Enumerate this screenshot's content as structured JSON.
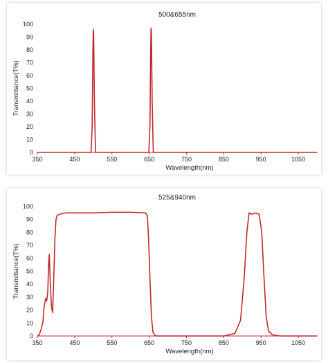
{
  "colors": {
    "curve": "#c0282d",
    "axis": "#c0282d",
    "grid": "#e6e6e6"
  },
  "chart_data": [
    {
      "type": "line",
      "title": "500&655nm",
      "xlabel": "Wavelength(nm)",
      "ylabel": "Transmittance(T%)",
      "xlim": [
        350,
        1100
      ],
      "ylim": [
        0,
        100
      ],
      "xticks": [
        "350",
        "450",
        "550",
        "650",
        "750",
        "850",
        "950",
        "1050"
      ],
      "yticks": [
        "0",
        "10",
        "20",
        "30",
        "40",
        "50",
        "60",
        "70",
        "80",
        "90",
        "100"
      ],
      "grid": false,
      "series": [
        {
          "x": [
            350,
            480,
            494,
            497,
            499,
            500,
            501,
            503,
            506,
            520,
            600,
            640,
            649,
            652,
            654,
            655,
            656,
            658,
            661,
            675,
            1100
          ],
          "y": [
            0,
            0,
            0,
            20,
            80,
            96,
            93,
            40,
            0,
            0,
            0,
            0,
            0,
            20,
            80,
            97,
            93,
            40,
            0,
            0,
            0
          ]
        }
      ]
    },
    {
      "type": "line",
      "title": "525&940nm",
      "xlabel": "Wavelength(nm)",
      "ylabel": "Transmittance(T%)",
      "xlim": [
        350,
        1100
      ],
      "ylim": [
        0,
        100
      ],
      "xticks": [
        "350",
        "450",
        "550",
        "650",
        "750",
        "850",
        "950",
        "1050"
      ],
      "yticks": [
        "0",
        "10",
        "20",
        "30",
        "40",
        "50",
        "60",
        "70",
        "80",
        "90",
        "100"
      ],
      "grid": false,
      "series": [
        {
          "x": [
            350,
            355,
            360,
            365,
            368,
            372,
            375,
            378,
            380,
            382,
            385,
            388,
            391,
            394,
            397,
            400,
            403,
            410,
            425,
            450,
            500,
            550,
            600,
            640,
            645,
            648,
            652,
            656,
            660,
            665,
            670,
            700,
            750,
            850,
            880,
            895,
            905,
            912,
            918,
            925,
            935,
            945,
            952,
            958,
            964,
            970,
            980,
            1000,
            1100
          ],
          "y": [
            0,
            1,
            5,
            11,
            22,
            29,
            27,
            34,
            55,
            63,
            38,
            22,
            18,
            45,
            75,
            90,
            93,
            94,
            95,
            95,
            95,
            95.5,
            95.5,
            95,
            93,
            78,
            45,
            15,
            3,
            0.5,
            0,
            0,
            0,
            0,
            2,
            12,
            45,
            80,
            95,
            94,
            95,
            94,
            80,
            45,
            15,
            4,
            1,
            0,
            0
          ]
        }
      ]
    }
  ]
}
